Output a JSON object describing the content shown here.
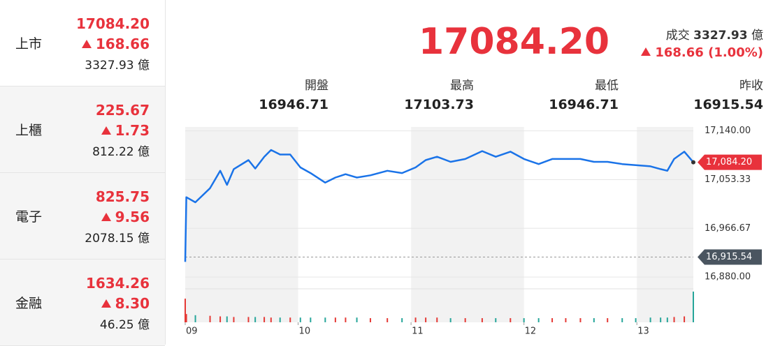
{
  "sidebar": [
    {
      "name": "上市",
      "price": "17084.20",
      "change": "168.66",
      "volume": "3327.93 億"
    },
    {
      "name": "上櫃",
      "price": "225.67",
      "change": "1.73",
      "volume": "812.22 億"
    },
    {
      "name": "電子",
      "price": "825.75",
      "change": "9.56",
      "volume": "2078.15 億"
    },
    {
      "name": "金融",
      "price": "1634.26",
      "change": "8.30",
      "volume": "46.25 億"
    }
  ],
  "quote": {
    "price": "17084.20",
    "volume_label": "成交",
    "volume": "3327.93",
    "volume_unit": "億",
    "change": "168.66 (1.00%)"
  },
  "stats": [
    {
      "label": "開盤",
      "value": "16946.71"
    },
    {
      "label": "最高",
      "value": "17103.73"
    },
    {
      "label": "最低",
      "value": "16946.71"
    },
    {
      "label": "昨收",
      "value": "16915.54"
    }
  ],
  "chart_data": {
    "type": "line",
    "color": "#1a73e8",
    "x": [
      9.0,
      9.01,
      9.09,
      9.22,
      9.31,
      9.37,
      9.43,
      9.56,
      9.62,
      9.7,
      9.76,
      9.84,
      9.93,
      10.02,
      10.11,
      10.24,
      10.33,
      10.42,
      10.52,
      10.64,
      10.79,
      10.92,
      11.04,
      11.13,
      11.23,
      11.35,
      11.48,
      11.63,
      11.75,
      11.88,
      12.0,
      12.13,
      12.25,
      12.37,
      12.5,
      12.62,
      12.74,
      12.87,
      12.99,
      13.12,
      13.21,
      13.27,
      13.33,
      13.42,
      13.5
    ],
    "values": [
      16907,
      17022,
      17013,
      17038,
      17069,
      17044,
      17072,
      17088,
      17073,
      17094,
      17106,
      17098,
      17098,
      17075,
      17065,
      17048,
      17057,
      17063,
      17057,
      17061,
      17069,
      17065,
      17075,
      17088,
      17094,
      17085,
      17090,
      17104,
      17094,
      17103,
      17090,
      17081,
      17090,
      17090,
      17090,
      17085,
      17085,
      17081,
      17079,
      17077,
      17072,
      17069,
      17090,
      17103,
      17084.2
    ],
    "volume": [
      40,
      14,
      12,
      11,
      10,
      10,
      9,
      9,
      9,
      9,
      8,
      8,
      8,
      8,
      8,
      8,
      8,
      8,
      8,
      7,
      7,
      7,
      8,
      8,
      8,
      7,
      7,
      7,
      7,
      7,
      7,
      7,
      7,
      7,
      7,
      7,
      7,
      7,
      7,
      8,
      8,
      8,
      9,
      10,
      52
    ],
    "volume_lim": [
      0,
      52
    ],
    "up_color": "#e53935",
    "down_color": "#26a69a",
    "xlim": [
      9,
      13.5
    ],
    "xticks": [
      {
        "value": 9,
        "label": "09"
      },
      10,
      11,
      12,
      13
    ],
    "ylim": [
      16864,
      17147
    ],
    "yticks": [
      {
        "value": 17140,
        "label": "17,140.00"
      },
      {
        "value": 17053.33,
        "label": "17,053.33"
      },
      {
        "value": 16966.67,
        "label": "16,966.67"
      },
      {
        "value": 16880,
        "label": "16,880.00"
      }
    ],
    "last_price": {
      "value": 17084.2,
      "label": "17,084.20"
    },
    "prev_close": {
      "value": 16915.54,
      "label": "16,915.54"
    },
    "grid": true
  }
}
